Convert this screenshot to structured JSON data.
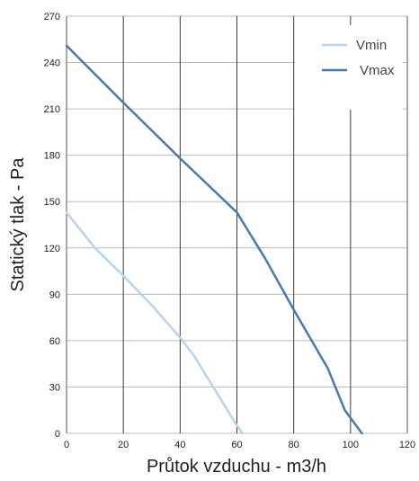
{
  "chart_data": {
    "type": "line",
    "xlabel": "Průtok vzduchu - m3/h",
    "ylabel": "Statický tlak - Pa",
    "xlim": [
      0,
      120
    ],
    "ylim": [
      0,
      270
    ],
    "x_ticks": [
      0,
      20,
      40,
      60,
      80,
      100,
      120
    ],
    "y_ticks": [
      0,
      30,
      60,
      90,
      120,
      150,
      180,
      210,
      240,
      270
    ],
    "x_tick_labels": [
      "0",
      "20",
      "40",
      "60",
      "80",
      "100",
      "120"
    ],
    "y_tick_labels": [
      "0",
      "30",
      "60",
      "90",
      "120",
      "150",
      "180",
      "210",
      "240",
      "270"
    ],
    "grid": true,
    "legend_position": "top-right",
    "series": [
      {
        "name": "Vmin",
        "color": "#b8d3ea",
        "points": [
          [
            0,
            143
          ],
          [
            10,
            120
          ],
          [
            20,
            102
          ],
          [
            30,
            83
          ],
          [
            40,
            62
          ],
          [
            45,
            50
          ],
          [
            50,
            35
          ],
          [
            55,
            20
          ],
          [
            60,
            5
          ],
          [
            62,
            0
          ]
        ]
      },
      {
        "name": "Vmax",
        "color": "#4a78b0",
        "points": [
          [
            0,
            251
          ],
          [
            20,
            214
          ],
          [
            40,
            178
          ],
          [
            60,
            143
          ],
          [
            70,
            113
          ],
          [
            80,
            80
          ],
          [
            92,
            42
          ],
          [
            98,
            15
          ],
          [
            104,
            0
          ]
        ]
      }
    ]
  }
}
